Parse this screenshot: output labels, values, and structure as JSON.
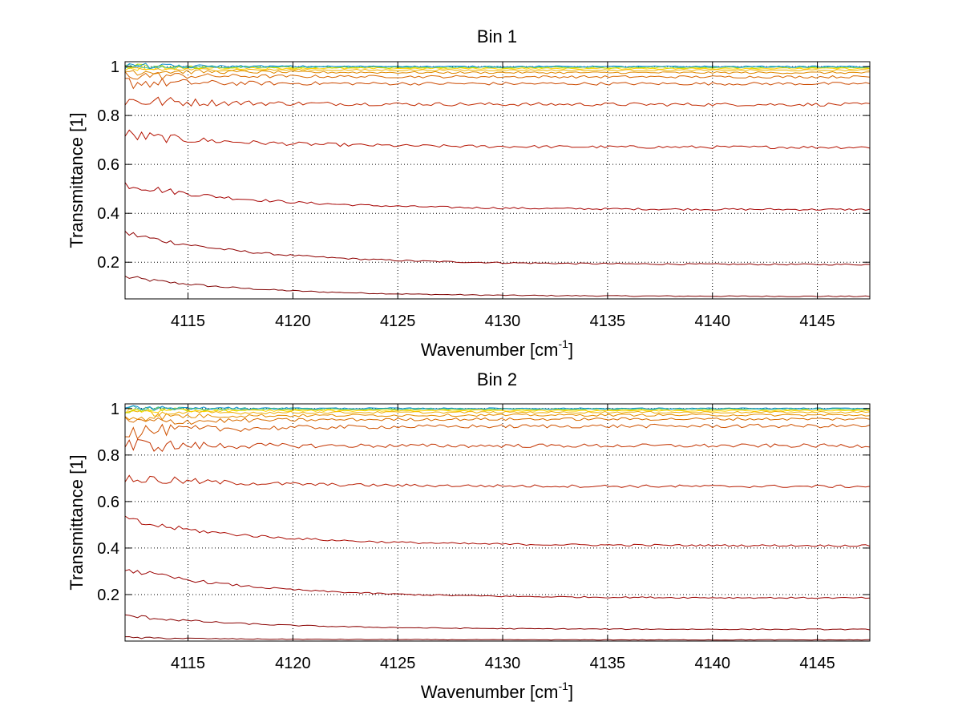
{
  "figure": {
    "background": "#ffffff",
    "grid_color": "#000000"
  },
  "chart_data": [
    {
      "type": "line",
      "title": "Bin 1",
      "xlabel": "Wavenumber [cm",
      "xlabel_sup": "-1",
      "xlabel_tail": "]",
      "ylabel": "Transmittance [1]",
      "xlim": [
        4112,
        4147.5
      ],
      "ylim": [
        0.05,
        1.02
      ],
      "xticks": [
        4115,
        4120,
        4125,
        4130,
        4135,
        4140,
        4145
      ],
      "xtick_labels": [
        "4115",
        "4120",
        "4125",
        "4130",
        "4135",
        "4140",
        "4145"
      ],
      "yticks": [
        0.2,
        0.4,
        0.6,
        0.8,
        1
      ],
      "ytick_labels": [
        "0.2",
        "0.4",
        "0.6",
        "0.8",
        "1"
      ],
      "grid": true,
      "series": [
        {
          "color": "#7f0000",
          "start": 0.14,
          "end": 0.06,
          "noise": 0.002
        },
        {
          "color": "#8f0000",
          "start": 0.32,
          "end": 0.19,
          "noise": 0.003
        },
        {
          "color": "#a50000",
          "start": 0.52,
          "end": 0.415,
          "noise": 0.004
        },
        {
          "color": "#b51200",
          "start": 0.72,
          "end": 0.67,
          "noise": 0.006
        },
        {
          "color": "#c12a00",
          "start": 0.86,
          "end": 0.845,
          "noise": 0.007
        },
        {
          "color": "#cc4a00",
          "start": 0.935,
          "end": 0.93,
          "noise": 0.006
        },
        {
          "color": "#d86800",
          "start": 0.965,
          "end": 0.958,
          "noise": 0.005
        },
        {
          "color": "#e08a00",
          "start": 0.982,
          "end": 0.975,
          "noise": 0.004
        },
        {
          "color": "#f0b000",
          "start": 0.99,
          "end": 0.985,
          "noise": 0.003
        },
        {
          "color": "#ffd400",
          "start": 0.996,
          "end": 0.992,
          "noise": 0.003
        },
        {
          "color": "#bfe000",
          "start": 0.999,
          "end": 0.996,
          "noise": 0.003
        },
        {
          "color": "#40c0a0",
          "start": 1.001,
          "end": 0.999,
          "noise": 0.003
        },
        {
          "color": "#1090d0",
          "start": 1.002,
          "end": 1.0,
          "noise": 0.003
        }
      ]
    },
    {
      "type": "line",
      "title": "Bin 2",
      "xlabel": "Wavenumber [cm",
      "xlabel_sup": "-1",
      "xlabel_tail": "]",
      "ylabel": "Transmittance [1]",
      "xlim": [
        4112,
        4147.5
      ],
      "ylim": [
        0.0,
        1.02
      ],
      "xticks": [
        4115,
        4120,
        4125,
        4130,
        4135,
        4140,
        4145
      ],
      "xtick_labels": [
        "4115",
        "4120",
        "4125",
        "4130",
        "4135",
        "4140",
        "4145"
      ],
      "yticks": [
        0.2,
        0.4,
        0.6,
        0.8,
        1
      ],
      "ytick_labels": [
        "0.2",
        "0.4",
        "0.6",
        "0.8",
        "1"
      ],
      "grid": true,
      "series": [
        {
          "color": "#7f0000",
          "start": 0.015,
          "end": 0.005,
          "noise": 0.001
        },
        {
          "color": "#8a0000",
          "start": 0.11,
          "end": 0.05,
          "noise": 0.002
        },
        {
          "color": "#9a0000",
          "start": 0.31,
          "end": 0.185,
          "noise": 0.003
        },
        {
          "color": "#aa0800",
          "start": 0.52,
          "end": 0.41,
          "noise": 0.004
        },
        {
          "color": "#b81c00",
          "start": 0.7,
          "end": 0.665,
          "noise": 0.006
        },
        {
          "color": "#c33400",
          "start": 0.84,
          "end": 0.84,
          "noise": 0.008
        },
        {
          "color": "#cf5200",
          "start": 0.9,
          "end": 0.925,
          "noise": 0.008
        },
        {
          "color": "#d86c00",
          "start": 0.94,
          "end": 0.955,
          "noise": 0.006
        },
        {
          "color": "#e48c00",
          "start": 0.965,
          "end": 0.972,
          "noise": 0.005
        },
        {
          "color": "#f0ae00",
          "start": 0.98,
          "end": 0.984,
          "noise": 0.004
        },
        {
          "color": "#ffd200",
          "start": 0.99,
          "end": 0.991,
          "noise": 0.003
        },
        {
          "color": "#c8e000",
          "start": 0.996,
          "end": 0.996,
          "noise": 0.003
        },
        {
          "color": "#40c0a0",
          "start": 1.0,
          "end": 0.999,
          "noise": 0.003
        },
        {
          "color": "#1090d0",
          "start": 1.002,
          "end": 1.0,
          "noise": 0.003
        }
      ]
    }
  ]
}
